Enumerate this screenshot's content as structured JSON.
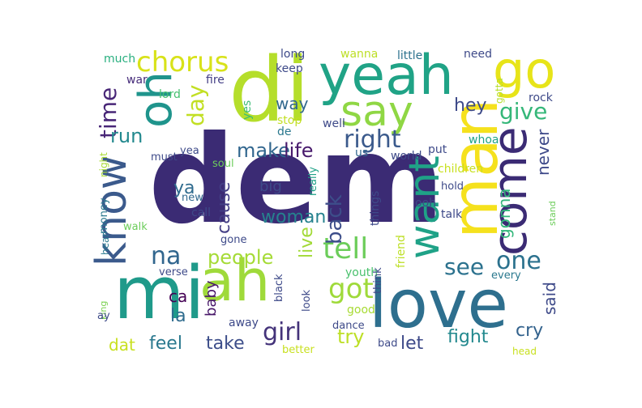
{
  "words": [
    {
      "text": "dem",
      "color": "#3b2b74"
    },
    {
      "text": "di",
      "color": "#b5de2b"
    },
    {
      "text": "mi",
      "color": "#1f9a8a"
    },
    {
      "text": "love",
      "color": "#2e6f8e"
    },
    {
      "text": "man",
      "color": "#f5e11d"
    },
    {
      "text": "yeah",
      "color": "#20a386"
    },
    {
      "text": "ah",
      "color": "#9fda3a"
    },
    {
      "text": "come",
      "color": "#3b2b74"
    },
    {
      "text": "go",
      "color": "#e7e419"
    },
    {
      "text": "know",
      "color": "#3b5a8c"
    },
    {
      "text": "oh",
      "color": "#1f948c"
    },
    {
      "text": "say",
      "color": "#8fd744"
    },
    {
      "text": "want",
      "color": "#1fa287"
    },
    {
      "text": "chorus",
      "color": "#d8e219"
    },
    {
      "text": "tell",
      "color": "#6ccd5a"
    },
    {
      "text": "got",
      "color": "#9fda3a"
    },
    {
      "text": "girl",
      "color": "#44337a"
    },
    {
      "text": "right",
      "color": "#3b5a8c"
    },
    {
      "text": "one",
      "color": "#2c728e"
    },
    {
      "text": "na",
      "color": "#31668e"
    },
    {
      "text": "time",
      "color": "#482677"
    },
    {
      "text": "give",
      "color": "#35b779"
    },
    {
      "text": "day",
      "color": "#c2df23"
    },
    {
      "text": "see",
      "color": "#2c728e"
    },
    {
      "text": "make",
      "color": "#31668e"
    },
    {
      "text": "life",
      "color": "#481a6c"
    },
    {
      "text": "back",
      "color": "#3d4e8a"
    },
    {
      "text": "woman",
      "color": "#26828e"
    },
    {
      "text": "cause",
      "color": "#433e85"
    },
    {
      "text": "people",
      "color": "#a5db36"
    },
    {
      "text": "run",
      "color": "#23898e"
    },
    {
      "text": "way",
      "color": "#31688e"
    },
    {
      "text": "hey",
      "color": "#3e4a89"
    },
    {
      "text": "gonna",
      "color": "#32b67a"
    },
    {
      "text": "never",
      "color": "#3e4989"
    },
    {
      "text": "live",
      "color": "#a2da37"
    },
    {
      "text": "fight",
      "color": "#23898e"
    },
    {
      "text": "feel",
      "color": "#2a788e"
    },
    {
      "text": "take",
      "color": "#3d4e8a"
    },
    {
      "text": "let",
      "color": "#3e4a89"
    },
    {
      "text": "try",
      "color": "#bddf26"
    },
    {
      "text": "cry",
      "color": "#33628d"
    },
    {
      "text": "said",
      "color": "#3e4a89"
    },
    {
      "text": "baby",
      "color": "#481769"
    },
    {
      "text": "ya",
      "color": "#2f6b8e"
    },
    {
      "text": "la",
      "color": "#2f6c8e"
    },
    {
      "text": "ca",
      "color": "#440154"
    },
    {
      "text": "dat",
      "color": "#c8e020"
    },
    {
      "text": "much",
      "color": "#29af7f"
    },
    {
      "text": "war",
      "color": "#472d7b"
    },
    {
      "text": "lord",
      "color": "#46c06f"
    },
    {
      "text": "fire",
      "color": "#433e85"
    },
    {
      "text": "long",
      "color": "#3e4a89"
    },
    {
      "text": "keep",
      "color": "#3e4a89"
    },
    {
      "text": "wanna",
      "color": "#bddf26"
    },
    {
      "text": "little",
      "color": "#2c728e"
    },
    {
      "text": "need",
      "color": "#3e4a89"
    },
    {
      "text": "gotta",
      "color": "#b5de2b"
    },
    {
      "text": "rock",
      "color": "#3e4a89"
    },
    {
      "text": "yes",
      "color": "#3bbb75"
    },
    {
      "text": "stop",
      "color": "#c2df23"
    },
    {
      "text": "de",
      "color": "#2a788e"
    },
    {
      "text": "well",
      "color": "#3e4a89"
    },
    {
      "text": "us",
      "color": "#31688e"
    },
    {
      "text": "world",
      "color": "#3e4a89"
    },
    {
      "text": "put",
      "color": "#3e4a89"
    },
    {
      "text": "whoa",
      "color": "#20a386"
    },
    {
      "text": "children",
      "color": "#c8e020"
    },
    {
      "text": "night",
      "color": "#a8db34"
    },
    {
      "text": "must",
      "color": "#3e4a89"
    },
    {
      "text": "yea",
      "color": "#3e4a89"
    },
    {
      "text": "soul",
      "color": "#6ccd5a"
    },
    {
      "text": "big",
      "color": "#3e4a89"
    },
    {
      "text": "really",
      "color": "#1fa187"
    },
    {
      "text": "hold",
      "color": "#3e4a89"
    },
    {
      "text": "new",
      "color": "#31688e"
    },
    {
      "text": "call",
      "color": "#3e4a89"
    },
    {
      "text": "money",
      "color": "#2a788e"
    },
    {
      "text": "things",
      "color": "#3e4a89"
    },
    {
      "text": "ooh",
      "color": "#3e4a89"
    },
    {
      "text": "talk",
      "color": "#3e4a89"
    },
    {
      "text": "stand",
      "color": "#6ccd5a"
    },
    {
      "text": "walk",
      "color": "#6ccd5a"
    },
    {
      "text": "gone",
      "color": "#3e4a89"
    },
    {
      "text": "hear",
      "color": "#2a788e"
    },
    {
      "text": "friend",
      "color": "#bddf26"
    },
    {
      "text": "verse",
      "color": "#3e4a89"
    },
    {
      "text": "youth",
      "color": "#4ac16d"
    },
    {
      "text": "black",
      "color": "#3e4a89"
    },
    {
      "text": "think",
      "color": "#3e4a89"
    },
    {
      "text": "every",
      "color": "#2a788e"
    },
    {
      "text": "king",
      "color": "#7ad151"
    },
    {
      "text": "ay",
      "color": "#3e4a89"
    },
    {
      "text": "away",
      "color": "#3e4a89"
    },
    {
      "text": "good",
      "color": "#a8db34"
    },
    {
      "text": "look",
      "color": "#3e4a89"
    },
    {
      "text": "dance",
      "color": "#3e4a89"
    },
    {
      "text": "better",
      "color": "#c8e020"
    },
    {
      "text": "bad",
      "color": "#3e4a89"
    },
    {
      "text": "head",
      "color": "#c8e020"
    }
  ]
}
